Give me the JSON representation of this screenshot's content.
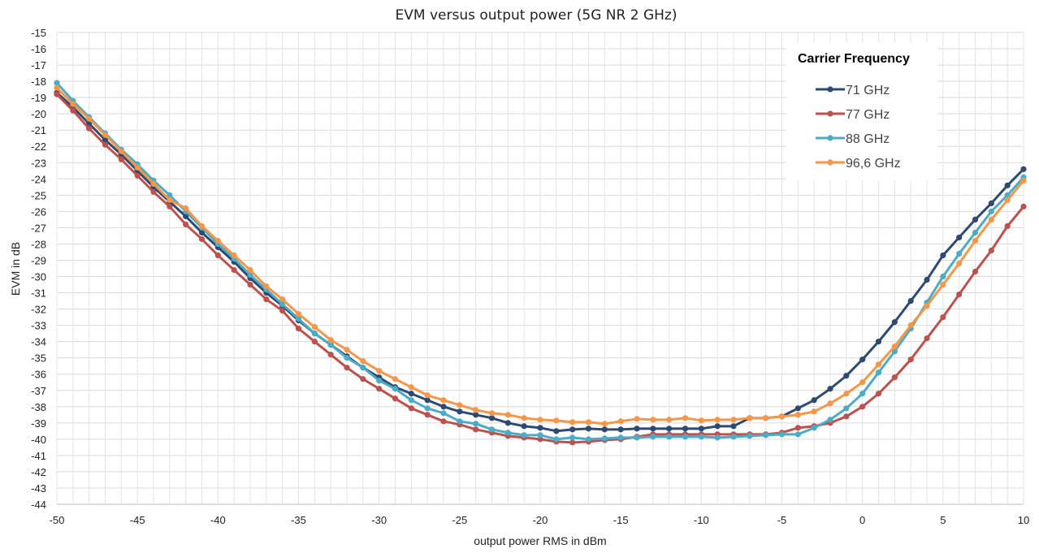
{
  "chart_data": {
    "type": "line",
    "title": "EVM versus output power (5G NR 2 GHz)",
    "xlabel": "output power RMS in dBm",
    "ylabel": "EVM in dB",
    "xlim": [
      -50,
      10
    ],
    "ylim": [
      -44,
      -15
    ],
    "xticks": [
      -50,
      -45,
      -40,
      -35,
      -30,
      -25,
      -20,
      -15,
      -10,
      -5,
      0,
      5,
      10
    ],
    "yticks": [
      -15,
      -16,
      -17,
      -18,
      -19,
      -20,
      -21,
      -22,
      -23,
      -24,
      -25,
      -26,
      -27,
      -28,
      -29,
      -30,
      -31,
      -32,
      -33,
      -34,
      -35,
      -36,
      -37,
      -38,
      -39,
      -40,
      -41,
      -42,
      -43,
      -44
    ],
    "grid": true,
    "legend": {
      "title": "Carrier Frequency",
      "placement": "top-right"
    },
    "x": [
      -50,
      -49,
      -48,
      -47,
      -46,
      -45,
      -44,
      -43,
      -42,
      -41,
      -40,
      -39,
      -38,
      -37,
      -36,
      -35,
      -34,
      -33,
      -32,
      -31,
      -30,
      -29,
      -28,
      -27,
      -26,
      -25,
      -24,
      -23,
      -22,
      -21,
      -20,
      -19,
      -18,
      -17,
      -16,
      -15,
      -14,
      -13,
      -12,
      -11,
      -10,
      -9,
      -8,
      -7,
      -6,
      -5,
      -4,
      -3,
      -2,
      -1,
      0,
      1,
      2,
      3,
      4,
      5,
      6,
      7,
      8,
      9,
      10
    ],
    "series": [
      {
        "name": "71 GHz",
        "color": "#2e4a72",
        "values": [
          -18.7,
          -19.6,
          -20.6,
          -21.6,
          -22.5,
          -23.5,
          -24.5,
          -25.4,
          -26.3,
          -27.3,
          -28.2,
          -29.1,
          -30.1,
          -31.0,
          -31.8,
          -32.7,
          -33.5,
          -34.2,
          -34.9,
          -35.6,
          -36.2,
          -36.8,
          -37.2,
          -37.6,
          -38.0,
          -38.3,
          -38.5,
          -38.7,
          -39.0,
          -39.2,
          -39.3,
          -39.5,
          -39.4,
          -39.35,
          -39.4,
          -39.4,
          -39.35,
          -39.35,
          -39.35,
          -39.35,
          -39.35,
          -39.2,
          -39.2,
          -38.7,
          -38.7,
          -38.6,
          -38.1,
          -37.6,
          -36.9,
          -36.1,
          -35.1,
          -34.0,
          -32.8,
          -31.5,
          -30.2,
          -28.7,
          -27.6,
          -26.5,
          -25.5,
          -24.4,
          -23.4
        ]
      },
      {
        "name": "77 GHz",
        "color": "#c0504d",
        "values": [
          -18.8,
          -19.8,
          -20.9,
          -21.9,
          -22.8,
          -23.8,
          -24.8,
          -25.7,
          -26.8,
          -27.7,
          -28.7,
          -29.6,
          -30.5,
          -31.4,
          -32.1,
          -33.2,
          -34.0,
          -34.8,
          -35.6,
          -36.3,
          -36.9,
          -37.5,
          -38.1,
          -38.5,
          -38.9,
          -39.1,
          -39.4,
          -39.6,
          -39.8,
          -39.9,
          -40.0,
          -40.15,
          -40.2,
          -40.15,
          -40.05,
          -40.0,
          -39.85,
          -39.7,
          -39.7,
          -39.7,
          -39.7,
          -39.7,
          -39.7,
          -39.7,
          -39.7,
          -39.6,
          -39.3,
          -39.2,
          -39.0,
          -38.6,
          -38.0,
          -37.2,
          -36.2,
          -35.1,
          -33.8,
          -32.5,
          -31.1,
          -29.7,
          -28.4,
          -26.9,
          -25.7
        ]
      },
      {
        "name": "88 GHz",
        "color": "#4bacc6",
        "values": [
          -18.1,
          -19.2,
          -20.2,
          -21.2,
          -22.2,
          -23.1,
          -24.1,
          -25.0,
          -26.0,
          -27.0,
          -28.0,
          -28.9,
          -29.9,
          -30.8,
          -31.7,
          -32.6,
          -33.5,
          -34.2,
          -35.0,
          -35.6,
          -36.4,
          -36.9,
          -37.6,
          -38.1,
          -38.4,
          -38.9,
          -39.05,
          -39.4,
          -39.6,
          -39.75,
          -39.75,
          -40.0,
          -39.9,
          -40.0,
          -39.95,
          -39.9,
          -39.9,
          -39.85,
          -39.85,
          -39.85,
          -39.85,
          -39.9,
          -39.85,
          -39.8,
          -39.75,
          -39.7,
          -39.7,
          -39.3,
          -38.8,
          -38.1,
          -37.2,
          -35.9,
          -34.6,
          -33.2,
          -31.6,
          -30.0,
          -28.6,
          -27.3,
          -26.0,
          -25.0,
          -23.9
        ]
      },
      {
        "name": "96,6 GHz",
        "color": "#f79646",
        "values": [
          -18.4,
          -19.4,
          -20.3,
          -21.3,
          -22.3,
          -23.3,
          -24.3,
          -25.3,
          -25.8,
          -26.9,
          -27.8,
          -28.7,
          -29.6,
          -30.6,
          -31.4,
          -32.3,
          -33.1,
          -33.9,
          -34.5,
          -35.2,
          -35.8,
          -36.3,
          -36.8,
          -37.3,
          -37.6,
          -37.9,
          -38.2,
          -38.4,
          -38.5,
          -38.7,
          -38.8,
          -38.85,
          -38.95,
          -38.95,
          -39.05,
          -38.9,
          -38.75,
          -38.8,
          -38.8,
          -38.7,
          -38.85,
          -38.8,
          -38.8,
          -38.7,
          -38.7,
          -38.6,
          -38.5,
          -38.3,
          -37.8,
          -37.2,
          -36.5,
          -35.4,
          -34.3,
          -33.0,
          -31.8,
          -30.5,
          -29.2,
          -27.8,
          -26.5,
          -25.3,
          -24.1
        ]
      }
    ]
  }
}
